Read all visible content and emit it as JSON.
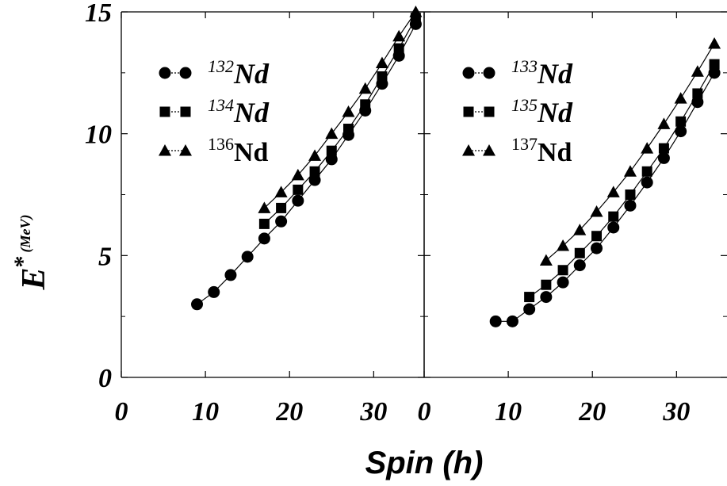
{
  "chart_data": [
    {
      "type": "line",
      "panel": "left",
      "xlabel": "Spin (h)",
      "ylabel": "E",
      "ylabel_superscript": "*",
      "ylabel_unit": "(MeV)",
      "xlim": [
        0,
        36
      ],
      "ylim": [
        0,
        15
      ],
      "xticks": [
        "0",
        "10",
        "20",
        "30"
      ],
      "yticks": [
        "0",
        "5",
        "10",
        "15"
      ],
      "grid": false,
      "legend_position": "top-left",
      "series": [
        {
          "name": "132Nd",
          "mass": "132",
          "element": "Nd",
          "marker": "circle",
          "x": [
            9,
            11,
            13,
            15,
            17,
            19,
            21,
            23,
            25,
            27,
            29,
            31,
            33,
            35
          ],
          "y": [
            3.0,
            3.5,
            4.2,
            4.95,
            5.7,
            6.4,
            7.25,
            8.1,
            8.95,
            9.95,
            10.95,
            12.05,
            13.2,
            14.5
          ]
        },
        {
          "name": "134Nd",
          "mass": "134",
          "element": "Nd",
          "marker": "square",
          "x": [
            17,
            19,
            21,
            23,
            25,
            27,
            29,
            31,
            33,
            35
          ],
          "y": [
            6.3,
            6.95,
            7.7,
            8.45,
            9.3,
            10.2,
            11.2,
            12.35,
            13.5,
            14.75
          ]
        },
        {
          "name": "136Nd",
          "mass": "136",
          "element": "Nd",
          "marker": "triangle",
          "x": [
            17,
            19,
            21,
            23,
            25,
            27,
            29,
            31,
            33,
            35
          ],
          "y": [
            6.95,
            7.6,
            8.3,
            9.1,
            10.0,
            10.9,
            11.85,
            12.9,
            14.0,
            15.0
          ]
        }
      ]
    },
    {
      "type": "line",
      "panel": "right",
      "xlim": [
        0,
        36
      ],
      "ylim": [
        0,
        15
      ],
      "xticks": [
        "0",
        "10",
        "20",
        "30"
      ],
      "grid": false,
      "legend_position": "top-left",
      "series": [
        {
          "name": "133Nd",
          "mass": "133",
          "element": "Nd",
          "marker": "circle",
          "x": [
            8.5,
            10.5,
            12.5,
            14.5,
            16.5,
            18.5,
            20.5,
            22.5,
            24.5,
            26.5,
            28.5,
            30.5,
            32.5,
            34.5
          ],
          "y": [
            2.3,
            2.3,
            2.8,
            3.3,
            3.9,
            4.6,
            5.3,
            6.15,
            7.05,
            8.0,
            9.0,
            10.1,
            11.3,
            12.5
          ]
        },
        {
          "name": "135Nd",
          "mass": "135",
          "element": "Nd",
          "marker": "square",
          "x": [
            12.5,
            14.5,
            16.5,
            18.5,
            20.5,
            22.5,
            24.5,
            26.5,
            28.5,
            30.5,
            32.5,
            34.5
          ],
          "y": [
            3.3,
            3.8,
            4.4,
            5.1,
            5.8,
            6.6,
            7.5,
            8.45,
            9.4,
            10.5,
            11.65,
            12.85
          ]
        },
        {
          "name": "137Nd",
          "mass": "137",
          "element": "Nd",
          "marker": "triangle",
          "x": [
            14.5,
            16.5,
            18.5,
            20.5,
            22.5,
            24.5,
            26.5,
            28.5,
            30.5,
            32.5,
            34.5
          ],
          "y": [
            4.8,
            5.4,
            6.05,
            6.8,
            7.6,
            8.45,
            9.4,
            10.4,
            11.45,
            12.55,
            13.7
          ]
        }
      ]
    }
  ]
}
